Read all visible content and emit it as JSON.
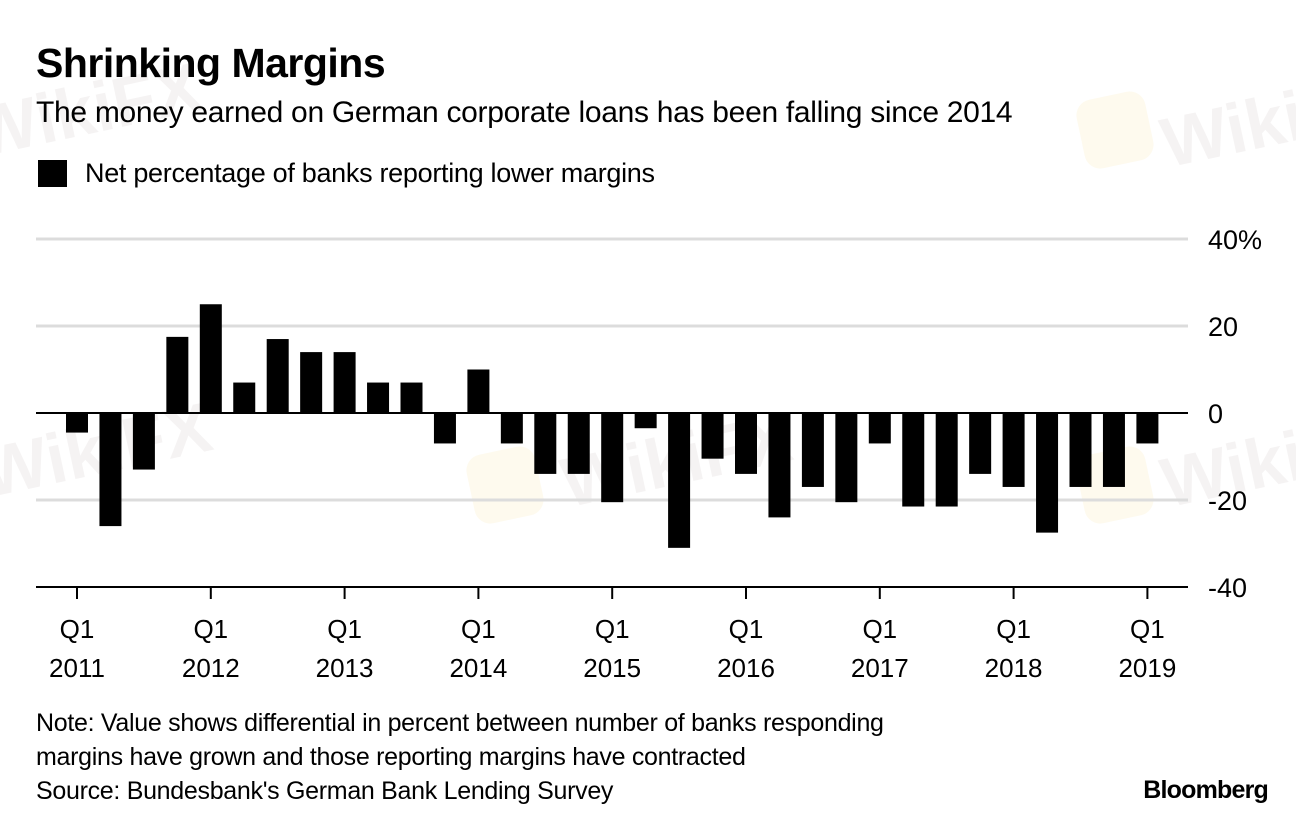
{
  "header": {
    "title": "Shrinking Margins",
    "subtitle": "The money earned on German corporate loans has been falling since 2014"
  },
  "legend": {
    "label": "Net percentage of banks reporting lower margins",
    "color": "#000000"
  },
  "footer": {
    "note_line1": "Note: Value shows differential in percent between number of banks responding",
    "note_line2": "margins have grown and those reporting margins have contracted",
    "source": "Source: Bundesbank's German Bank Lending Survey",
    "brand": "Bloomberg"
  },
  "watermark": {
    "text": "WikiFX"
  },
  "chart_data": {
    "type": "bar",
    "title": "Shrinking Margins",
    "subtitle": "The money earned on German corporate loans has been falling since 2014",
    "xlabel": "",
    "ylabel": "",
    "ylim": [
      -40,
      40
    ],
    "yticks": [
      40,
      20,
      0,
      -20,
      -40
    ],
    "ytick_labels": [
      "40%",
      "20",
      "0",
      "-20",
      "-40"
    ],
    "y_axis_side": "right",
    "grid": true,
    "legend_position": "top-left",
    "series": [
      {
        "name": "Net percentage of banks reporting lower margins",
        "color": "#000000",
        "values": [
          -4.5,
          -26,
          -13,
          17.5,
          25,
          7,
          17,
          14,
          14,
          7,
          7,
          -7,
          10,
          -7,
          -14,
          -14,
          -20.5,
          -3.5,
          -31,
          -10.5,
          -14,
          -24,
          -17,
          -20.5,
          -7,
          -21.5,
          -21.5,
          -14,
          -17,
          -27.5,
          -17,
          -17,
          -7
        ]
      }
    ],
    "categories": [
      "2011 Q1",
      "2011 Q2",
      "2011 Q3",
      "2011 Q4",
      "2012 Q1",
      "2012 Q2",
      "2012 Q3",
      "2012 Q4",
      "2013 Q1",
      "2013 Q2",
      "2013 Q3",
      "2013 Q4",
      "2014 Q1",
      "2014 Q2",
      "2014 Q3",
      "2014 Q4",
      "2015 Q1",
      "2015 Q2",
      "2015 Q3",
      "2015 Q4",
      "2016 Q1",
      "2016 Q2",
      "2016 Q3",
      "2016 Q4",
      "2017 Q1",
      "2017 Q2",
      "2017 Q3",
      "2017 Q4",
      "2018 Q1",
      "2018 Q2",
      "2018 Q3",
      "2018 Q4",
      "2019 Q1"
    ],
    "xtick_labels": [
      {
        "quarter": "Q1",
        "year": "2011",
        "index": 0
      },
      {
        "quarter": "Q1",
        "year": "2012",
        "index": 4
      },
      {
        "quarter": "Q1",
        "year": "2013",
        "index": 8
      },
      {
        "quarter": "Q1",
        "year": "2014",
        "index": 12
      },
      {
        "quarter": "Q1",
        "year": "2015",
        "index": 16
      },
      {
        "quarter": "Q1",
        "year": "2016",
        "index": 20
      },
      {
        "quarter": "Q1",
        "year": "2017",
        "index": 24
      },
      {
        "quarter": "Q1",
        "year": "2018",
        "index": 28
      },
      {
        "quarter": "Q1",
        "year": "2019",
        "index": 32
      }
    ]
  }
}
